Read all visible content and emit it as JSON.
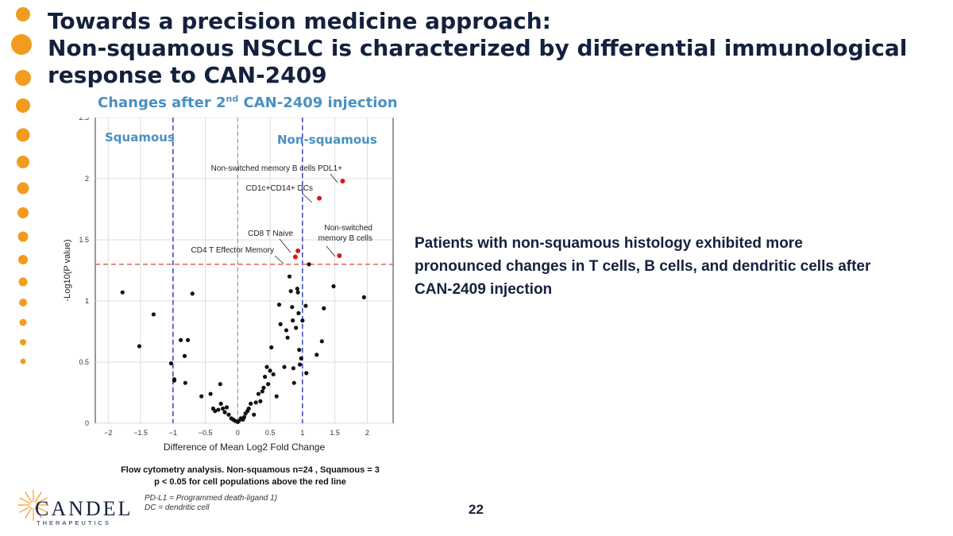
{
  "slide": {
    "title_line1": "Towards a precision medicine approach:",
    "title_line2": "Non-squamous NSCLC is characterized by differential immunological",
    "title_line3": "response to CAN-2409",
    "subtitle_pre": "Changes after 2",
    "subtitle_sup": "nd",
    "subtitle_post": " CAN-2409 injection",
    "takeaway": "Patients with non-squamous histology exhibited more pronounced changes in  T cells, B cells, and dendritic cells after CAN-2409 injection",
    "footnote_line1": "Flow cytometry analysis. Non-squamous n=24 , Squamous  = 3",
    "footnote_line2": "p < 0.05 for cell populations above the red line",
    "abbrev_line1": "PD-L1 = Programmed death-ligand 1)",
    "abbrev_line2": "DC = dendritic cell",
    "page_number": "22",
    "logo_name": "CANDEL",
    "logo_sub": "THERAPEUTICS"
  },
  "colors": {
    "title": "#14213d",
    "accent_blue": "#4a90c2",
    "orange": "#f29c1f",
    "significant_point": "#d7191c",
    "threshold_line": "#e05252",
    "fold_line": "#2b35c8"
  },
  "chart_data": {
    "type": "scatter",
    "title": "",
    "xlabel": "Difference of Mean Log2 Fold Change",
    "ylabel": "-Log10(P value)",
    "xlim": [
      -2.2,
      2.4
    ],
    "ylim": [
      0,
      2.5
    ],
    "xticks": [
      -2,
      -1.5,
      -1,
      -0.5,
      0,
      0.5,
      1,
      1.5,
      2
    ],
    "xtick_labels": [
      "−2",
      "−1.5",
      "−1",
      "−0.5",
      "0",
      "0.5",
      "1",
      "1.5",
      "2"
    ],
    "yticks": [
      0,
      0.5,
      1,
      1.5,
      2,
      2.5
    ],
    "ytick_labels": [
      "0",
      "0.5",
      "1",
      "1.5",
      "2",
      "2.5"
    ],
    "grid": true,
    "region_labels": {
      "left": "Squamous",
      "right": "Non-squamous"
    },
    "threshold_y": 1.3,
    "fold_lines_x": [
      -1,
      1
    ],
    "center_line_x": 0,
    "significant_points": [
      {
        "x": 1.62,
        "y": 1.98,
        "label": "Non-switched memory B cells PDL1+"
      },
      {
        "x": 1.26,
        "y": 1.84,
        "label": "CD1c+CD14+ DCs"
      },
      {
        "x": 1.57,
        "y": 1.37,
        "label": "Non-switched\nmemory B cells"
      },
      {
        "x": 0.93,
        "y": 1.41,
        "label": "CD8 T Naive"
      },
      {
        "x": 0.89,
        "y": 1.36,
        "label": "CD4 T Effector Memory"
      }
    ],
    "points": [
      {
        "x": -1.78,
        "y": 1.07
      },
      {
        "x": -1.52,
        "y": 0.63
      },
      {
        "x": -1.3,
        "y": 0.89
      },
      {
        "x": -1.03,
        "y": 0.49
      },
      {
        "x": -0.98,
        "y": 0.36
      },
      {
        "x": -0.98,
        "y": 0.35
      },
      {
        "x": -0.88,
        "y": 0.68
      },
      {
        "x": -0.82,
        "y": 0.55
      },
      {
        "x": -0.81,
        "y": 0.33
      },
      {
        "x": -0.77,
        "y": 0.68
      },
      {
        "x": -0.7,
        "y": 1.06
      },
      {
        "x": -0.56,
        "y": 0.22
      },
      {
        "x": -0.42,
        "y": 0.24
      },
      {
        "x": -0.38,
        "y": 0.12
      },
      {
        "x": -0.35,
        "y": 0.1
      },
      {
        "x": -0.3,
        "y": 0.11
      },
      {
        "x": -0.27,
        "y": 0.32
      },
      {
        "x": -0.26,
        "y": 0.16
      },
      {
        "x": -0.23,
        "y": 0.12
      },
      {
        "x": -0.2,
        "y": 0.09
      },
      {
        "x": -0.17,
        "y": 0.13
      },
      {
        "x": -0.14,
        "y": 0.07
      },
      {
        "x": -0.1,
        "y": 0.04
      },
      {
        "x": -0.07,
        "y": 0.03
      },
      {
        "x": -0.04,
        "y": 0.02
      },
      {
        "x": 0.0,
        "y": 0.01
      },
      {
        "x": 0.02,
        "y": 0.02
      },
      {
        "x": 0.05,
        "y": 0.04
      },
      {
        "x": 0.08,
        "y": 0.03
      },
      {
        "x": 0.1,
        "y": 0.05
      },
      {
        "x": 0.12,
        "y": 0.08
      },
      {
        "x": 0.15,
        "y": 0.1
      },
      {
        "x": 0.17,
        "y": 0.12
      },
      {
        "x": 0.2,
        "y": 0.16
      },
      {
        "x": 0.25,
        "y": 0.07
      },
      {
        "x": 0.28,
        "y": 0.17
      },
      {
        "x": 0.32,
        "y": 0.24
      },
      {
        "x": 0.35,
        "y": 0.18
      },
      {
        "x": 0.38,
        "y": 0.26
      },
      {
        "x": 0.4,
        "y": 0.29
      },
      {
        "x": 0.42,
        "y": 0.38
      },
      {
        "x": 0.45,
        "y": 0.46
      },
      {
        "x": 0.47,
        "y": 0.32
      },
      {
        "x": 0.5,
        "y": 0.43
      },
      {
        "x": 0.52,
        "y": 0.62
      },
      {
        "x": 0.55,
        "y": 0.4
      },
      {
        "x": 0.6,
        "y": 0.22
      },
      {
        "x": 0.64,
        "y": 0.97
      },
      {
        "x": 0.66,
        "y": 0.81
      },
      {
        "x": 0.72,
        "y": 0.46
      },
      {
        "x": 0.75,
        "y": 0.76
      },
      {
        "x": 0.77,
        "y": 0.7
      },
      {
        "x": 0.8,
        "y": 1.2
      },
      {
        "x": 0.82,
        "y": 1.08
      },
      {
        "x": 0.84,
        "y": 0.95
      },
      {
        "x": 0.85,
        "y": 0.84
      },
      {
        "x": 0.86,
        "y": 0.45
      },
      {
        "x": 0.87,
        "y": 0.33
      },
      {
        "x": 0.9,
        "y": 0.78
      },
      {
        "x": 0.92,
        "y": 1.1
      },
      {
        "x": 0.93,
        "y": 1.07
      },
      {
        "x": 0.94,
        "y": 0.9
      },
      {
        "x": 0.95,
        "y": 0.6
      },
      {
        "x": 0.96,
        "y": 0.48
      },
      {
        "x": 0.98,
        "y": 0.53
      },
      {
        "x": 1.0,
        "y": 0.84
      },
      {
        "x": 1.05,
        "y": 0.96
      },
      {
        "x": 1.06,
        "y": 0.41
      },
      {
        "x": 1.1,
        "y": 1.3
      },
      {
        "x": 1.22,
        "y": 0.56
      },
      {
        "x": 1.3,
        "y": 0.67
      },
      {
        "x": 1.33,
        "y": 0.94
      },
      {
        "x": 1.48,
        "y": 1.12
      },
      {
        "x": 1.95,
        "y": 1.03
      }
    ]
  }
}
